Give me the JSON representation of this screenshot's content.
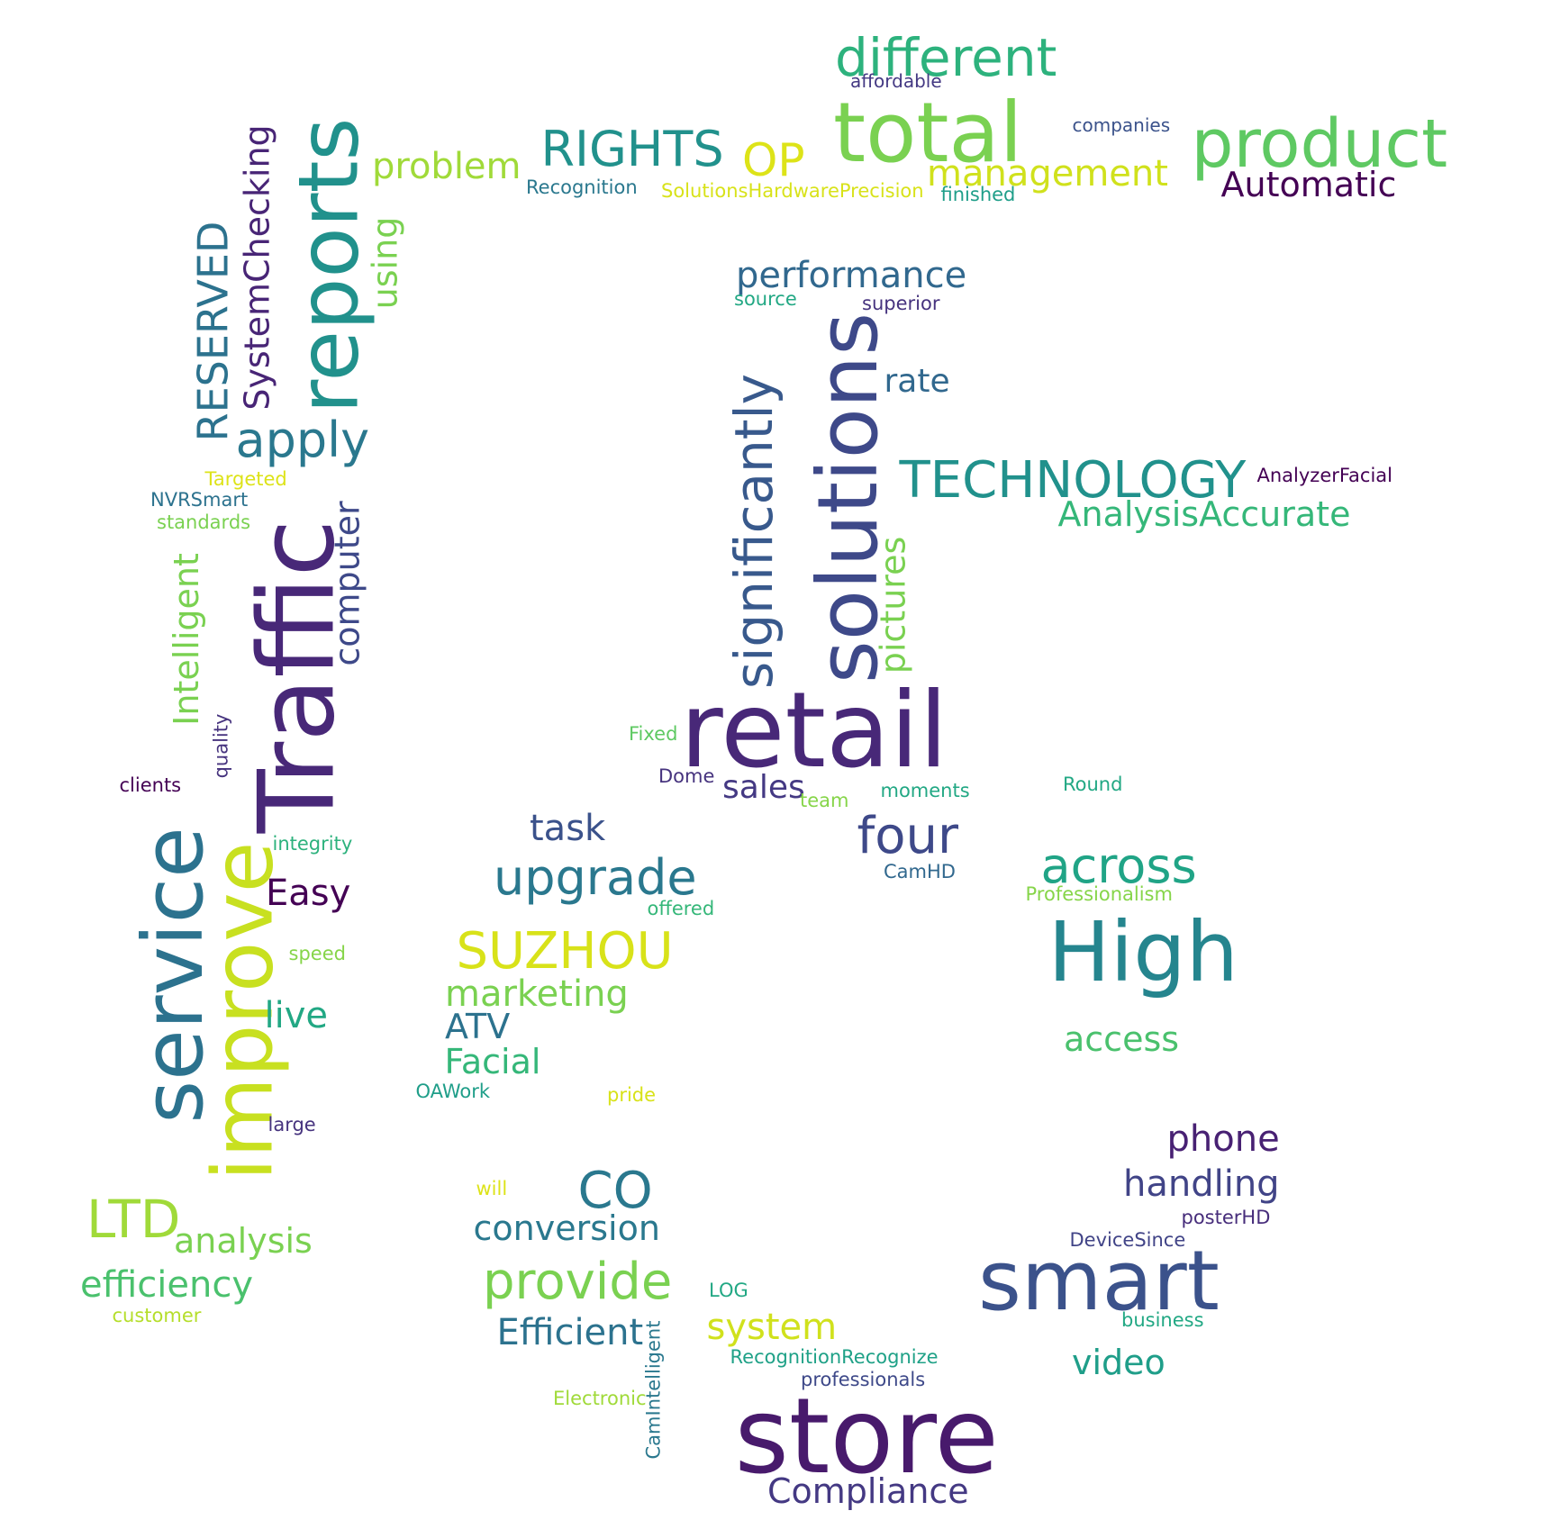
{
  "words": [
    {
      "text": "different",
      "color": "#2db27d"
    },
    {
      "text": "affordable",
      "color": "#443983"
    },
    {
      "text": "total",
      "color": "#7ad151"
    },
    {
      "text": "companies",
      "color": "#3b528b"
    },
    {
      "text": "product",
      "color": "#5ec962"
    },
    {
      "text": "Automatic",
      "color": "#440154"
    },
    {
      "text": "RIGHTS",
      "color": "#21918c"
    },
    {
      "text": "Recognition",
      "color": "#2a788e"
    },
    {
      "text": "OP",
      "color": "#dde318"
    },
    {
      "text": "SolutionsHardwarePrecision",
      "color": "#d8e219"
    },
    {
      "text": "management",
      "color": "#d0e11c"
    },
    {
      "text": "finished",
      "color": "#1f9e89"
    },
    {
      "text": "problem",
      "color": "#a0da39"
    },
    {
      "text": "reports",
      "color": "#21918c"
    },
    {
      "text": "SystemChecking",
      "color": "#482576"
    },
    {
      "text": "RESERVED",
      "color": "#2c728e"
    },
    {
      "text": "using",
      "color": "#7ad151"
    },
    {
      "text": "apply",
      "color": "#2a788e"
    },
    {
      "text": "performance",
      "color": "#31688e"
    },
    {
      "text": "source",
      "color": "#22a884"
    },
    {
      "text": "superior",
      "color": "#46337e"
    },
    {
      "text": "solutions",
      "color": "#3e4989"
    },
    {
      "text": "rate",
      "color": "#31688e"
    },
    {
      "text": "significantly",
      "color": "#38598c"
    },
    {
      "text": "TECHNOLOGY",
      "color": "#21918c"
    },
    {
      "text": "AnalyzerFacial",
      "color": "#440154"
    },
    {
      "text": "AnalysisAccurate",
      "color": "#35b779"
    },
    {
      "text": "pictures",
      "color": "#7ad151"
    },
    {
      "text": "Targeted",
      "color": "#dde318"
    },
    {
      "text": "NVRSmart",
      "color": "#2c728e"
    },
    {
      "text": "standards",
      "color": "#7ad151"
    },
    {
      "text": "Traffic",
      "color": "#482878"
    },
    {
      "text": "computer",
      "color": "#3e4989"
    },
    {
      "text": "Intelligent",
      "color": "#7ad151"
    },
    {
      "text": "quality",
      "color": "#46337e"
    },
    {
      "text": "clients",
      "color": "#440154"
    },
    {
      "text": "Fixed",
      "color": "#5ec962"
    },
    {
      "text": "retail",
      "color": "#482878"
    },
    {
      "text": "Dome",
      "color": "#46337e"
    },
    {
      "text": "sales",
      "color": "#443983"
    },
    {
      "text": "team",
      "color": "#86d549"
    },
    {
      "text": "moments",
      "color": "#22a884"
    },
    {
      "text": "Round",
      "color": "#22a884"
    },
    {
      "text": "service",
      "color": "#2c728e"
    },
    {
      "text": "improve",
      "color": "#c8e020"
    },
    {
      "text": "integrity",
      "color": "#2db27d"
    },
    {
      "text": "task",
      "color": "#3b528b"
    },
    {
      "text": "four",
      "color": "#3e4989"
    },
    {
      "text": "CamHD",
      "color": "#31688e"
    },
    {
      "text": "across",
      "color": "#20a486"
    },
    {
      "text": "Professionalism",
      "color": "#86d549"
    },
    {
      "text": "Easy",
      "color": "#440154"
    },
    {
      "text": "upgrade",
      "color": "#2a788e"
    },
    {
      "text": "offered",
      "color": "#35b779"
    },
    {
      "text": "High",
      "color": "#25858e"
    },
    {
      "text": "speed",
      "color": "#86d549"
    },
    {
      "text": "SUZHOU",
      "color": "#d8e219"
    },
    {
      "text": "marketing",
      "color": "#7ad151"
    },
    {
      "text": "live",
      "color": "#22a884"
    },
    {
      "text": "ATV",
      "color": "#2c728e"
    },
    {
      "text": "access",
      "color": "#4ac16d"
    },
    {
      "text": "Facial",
      "color": "#35b779"
    },
    {
      "text": "OAWork",
      "color": "#1f9e89"
    },
    {
      "text": "pride",
      "color": "#d8e219"
    },
    {
      "text": "large",
      "color": "#46337e"
    },
    {
      "text": "phone",
      "color": "#482173"
    },
    {
      "text": "handling",
      "color": "#414487"
    },
    {
      "text": "will",
      "color": "#dde318"
    },
    {
      "text": "CO",
      "color": "#2a788e"
    },
    {
      "text": "posterHD",
      "color": "#472d7b"
    },
    {
      "text": "LTD",
      "color": "#a0da39"
    },
    {
      "text": "analysis",
      "color": "#7ad151"
    },
    {
      "text": "conversion",
      "color": "#2a788e"
    },
    {
      "text": "DeviceSince",
      "color": "#414487"
    },
    {
      "text": "smart",
      "color": "#3b528b"
    },
    {
      "text": "efficiency",
      "color": "#4ac16d"
    },
    {
      "text": "provide",
      "color": "#7ad151"
    },
    {
      "text": "LOG",
      "color": "#22a884"
    },
    {
      "text": "customer",
      "color": "#b5de2b"
    },
    {
      "text": "Efficient",
      "color": "#2c728e"
    },
    {
      "text": "system",
      "color": "#d0e11c"
    },
    {
      "text": "business",
      "color": "#22a884"
    },
    {
      "text": "RecognitionRecognize",
      "color": "#1fa187"
    },
    {
      "text": "video",
      "color": "#1f9e89"
    },
    {
      "text": "CamIntelligent",
      "color": "#2a788e"
    },
    {
      "text": "professionals",
      "color": "#3e4989"
    },
    {
      "text": "Electronic",
      "color": "#a0da39"
    },
    {
      "text": "store",
      "color": "#481a6c"
    },
    {
      "text": "Compliance",
      "color": "#443983"
    }
  ]
}
